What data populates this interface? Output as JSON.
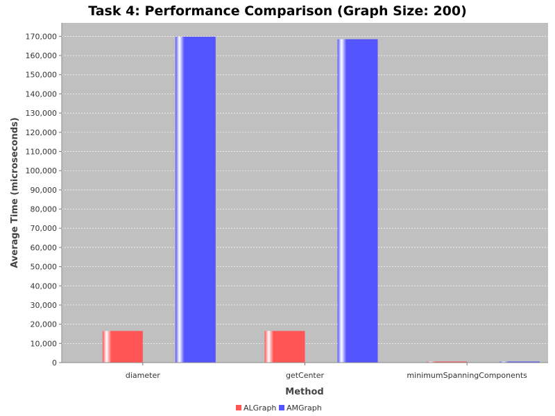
{
  "chart_data": {
    "type": "bar",
    "title": "Task 4: Performance Comparison (Graph Size: 200)",
    "xlabel": "Method",
    "ylabel": "Average Time (microseconds)",
    "categories": [
      "diameter",
      "getCenter",
      "minimumSpanningComponents"
    ],
    "series": [
      {
        "name": "ALGraph",
        "values": [
          16500,
          16500,
          400
        ],
        "color": "#ff5555"
      },
      {
        "name": "AMGraph",
        "values": [
          169800,
          168500,
          400
        ],
        "color": "#5555ff"
      }
    ],
    "ylim": [
      0,
      177000
    ],
    "yticks": [
      0,
      10000,
      20000,
      30000,
      40000,
      50000,
      60000,
      70000,
      80000,
      90000,
      100000,
      110000,
      120000,
      130000,
      140000,
      150000,
      160000,
      170000
    ],
    "grid": true,
    "plot_background": "#c0c0c0",
    "legend_position": "bottom"
  }
}
